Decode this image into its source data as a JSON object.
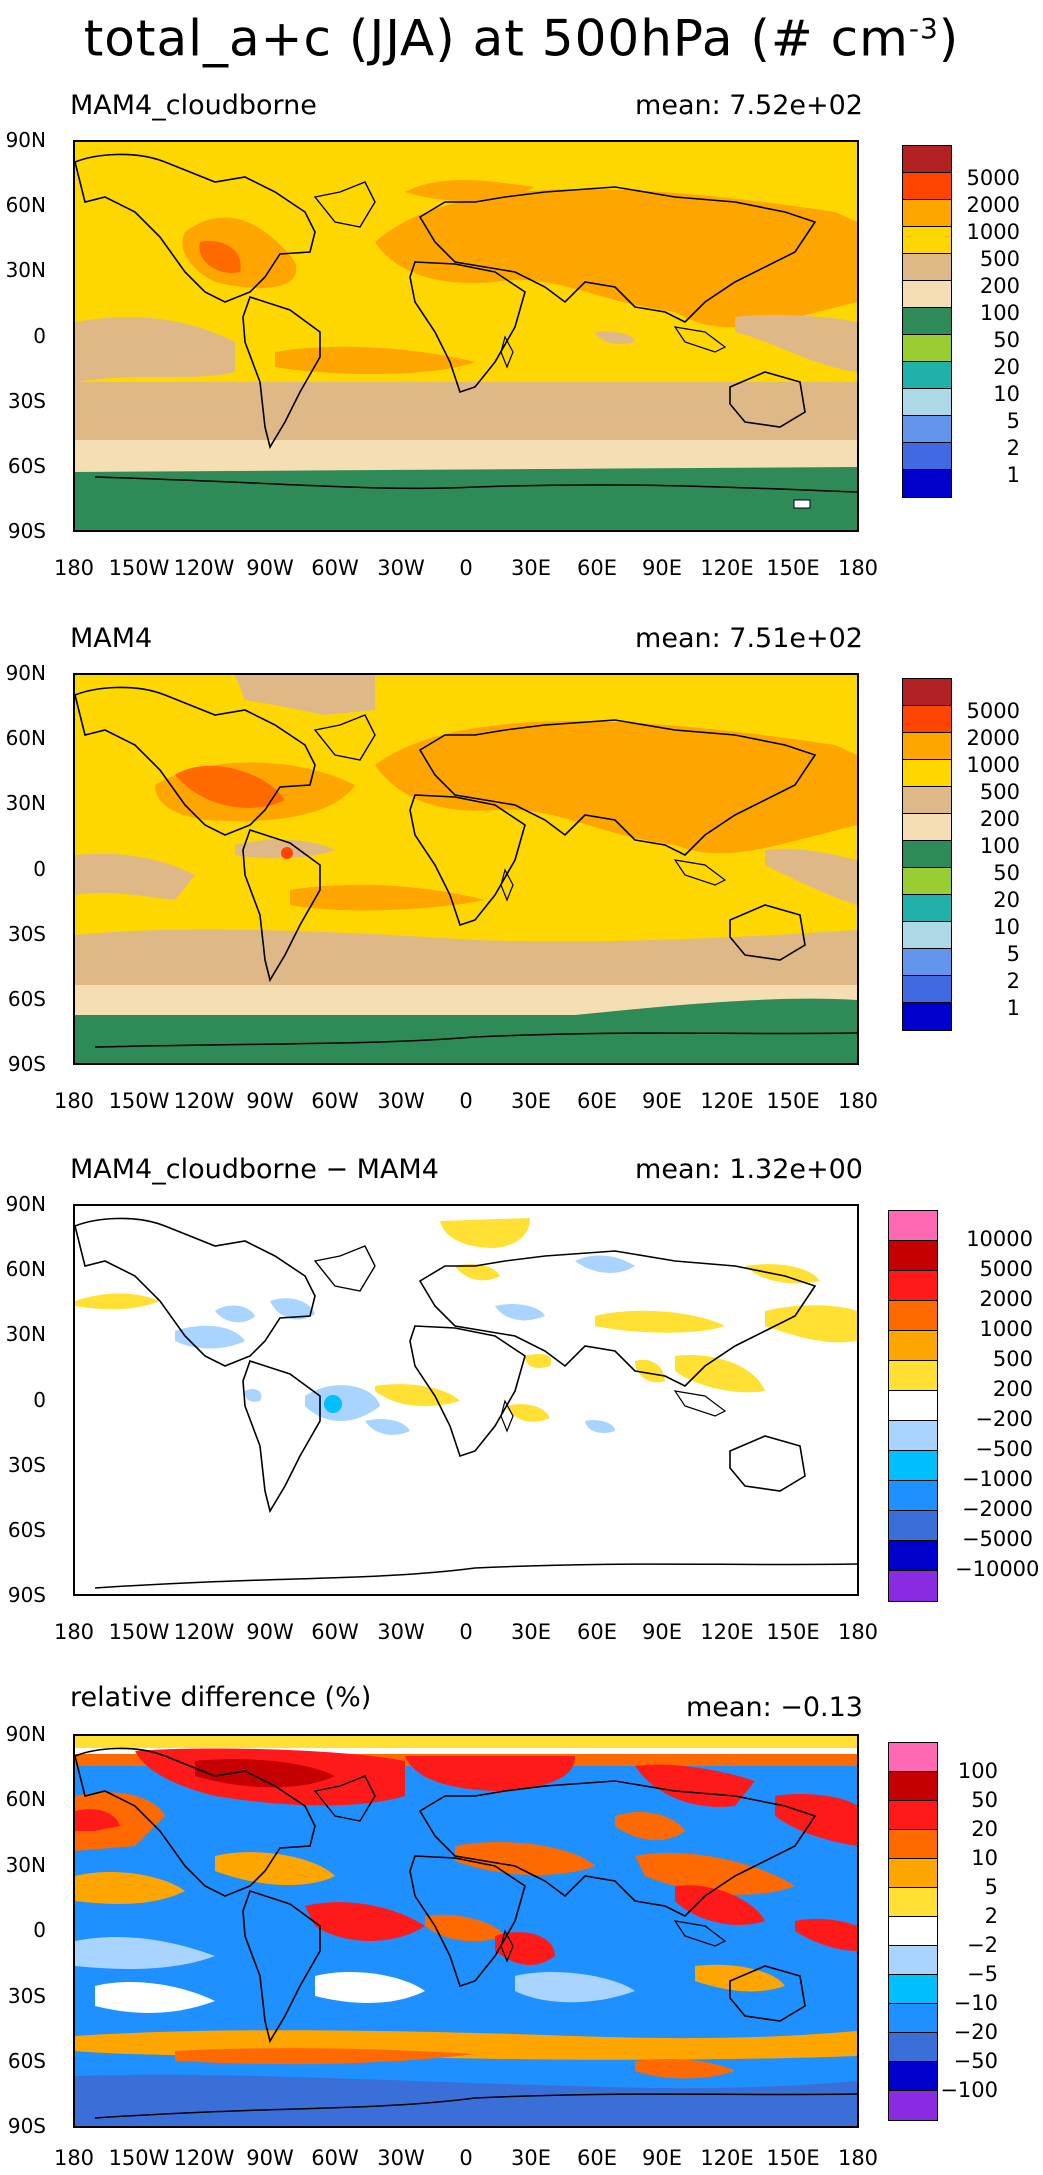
{
  "title": "total_a+c (JJA) at 500hPa (# cm",
  "title_sup": "-3",
  "title_close": ")",
  "y_ticks": [
    "90N",
    "60N",
    "30N",
    "0",
    "30S",
    "60S",
    "90S"
  ],
  "x_ticks": [
    "180",
    "150W",
    "120W",
    "90W",
    "60W",
    "30W",
    "0",
    "30E",
    "60E",
    "90E",
    "120E",
    "150E",
    "180"
  ],
  "panels": [
    {
      "name": "MAM4_cloudborne",
      "mean": "mean: 7.52e+02",
      "legend_colors": [
        "#b22222",
        "#ff4500",
        "#ffa500",
        "#ffd700",
        "#deb887",
        "#f5deb3",
        "#2e8b57",
        "#9acd32",
        "#20b2aa",
        "#add8e6",
        "#6495ed",
        "#4169e1",
        "#0000cd"
      ],
      "legend_labels": [
        "5000",
        "2000",
        "1000",
        "500",
        "200",
        "100",
        "50",
        "20",
        "10",
        "5",
        "2",
        "1"
      ]
    },
    {
      "name": "MAM4",
      "mean": "mean: 7.51e+02",
      "legend_colors": [
        "#b22222",
        "#ff4500",
        "#ffa500",
        "#ffd700",
        "#deb887",
        "#f5deb3",
        "#2e8b57",
        "#9acd32",
        "#20b2aa",
        "#add8e6",
        "#6495ed",
        "#4169e1",
        "#0000cd"
      ],
      "legend_labels": [
        "5000",
        "2000",
        "1000",
        "500",
        "200",
        "100",
        "50",
        "20",
        "10",
        "5",
        "2",
        "1"
      ]
    },
    {
      "name": "MAM4_cloudborne − MAM4",
      "mean": "mean: 1.32e+00",
      "legend_colors": [
        "#ff69b4",
        "#c40000",
        "#ff1a1a",
        "#ff6a00",
        "#ffa500",
        "#ffe033",
        "#ffffff",
        "#a8d4ff",
        "#00bfff",
        "#1e90ff",
        "#3b6fd8",
        "#0000cd",
        "#8a2be2"
      ],
      "legend_labels": [
        "10000",
        "5000",
        "2000",
        "1000",
        "500",
        "200",
        "−200",
        "−500",
        "−1000",
        "−2000",
        "−5000",
        "−10000"
      ]
    },
    {
      "name": "relative difference (%)",
      "mean": "mean: −0.13",
      "legend_colors": [
        "#ff69b4",
        "#c40000",
        "#ff1a1a",
        "#ff6a00",
        "#ffa500",
        "#ffe033",
        "#ffffff",
        "#a8d4ff",
        "#00bfff",
        "#1e90ff",
        "#3b6fd8",
        "#0000cd",
        "#8a2be2"
      ],
      "legend_labels": [
        "100",
        "50",
        "20",
        "10",
        "5",
        "2",
        "−2",
        "−5",
        "−10",
        "−20",
        "−50",
        "−100"
      ]
    }
  ]
}
